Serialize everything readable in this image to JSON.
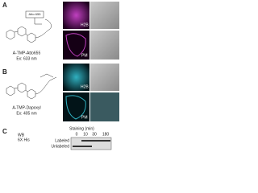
{
  "panel_a": {
    "label": "A",
    "fluorophore_box": "Atto 655",
    "compound": "A-TMP-Atto655",
    "excitation": "Ex: 633 nm",
    "row_labels": [
      "H2B",
      "PM"
    ]
  },
  "panel_b": {
    "label": "B",
    "compound": "A-TMP-Dapoxyl",
    "excitation": "Ex: 405 nm",
    "row_labels": [
      "H2B",
      "PM"
    ]
  },
  "panel_c": {
    "label": "C",
    "method": "WB",
    "antibody": "6X His",
    "axis_title": "Staining (min)",
    "timepoints": [
      "0",
      "10",
      "30",
      "180"
    ],
    "bands": [
      "Labeled",
      "Unlabeled"
    ]
  }
}
